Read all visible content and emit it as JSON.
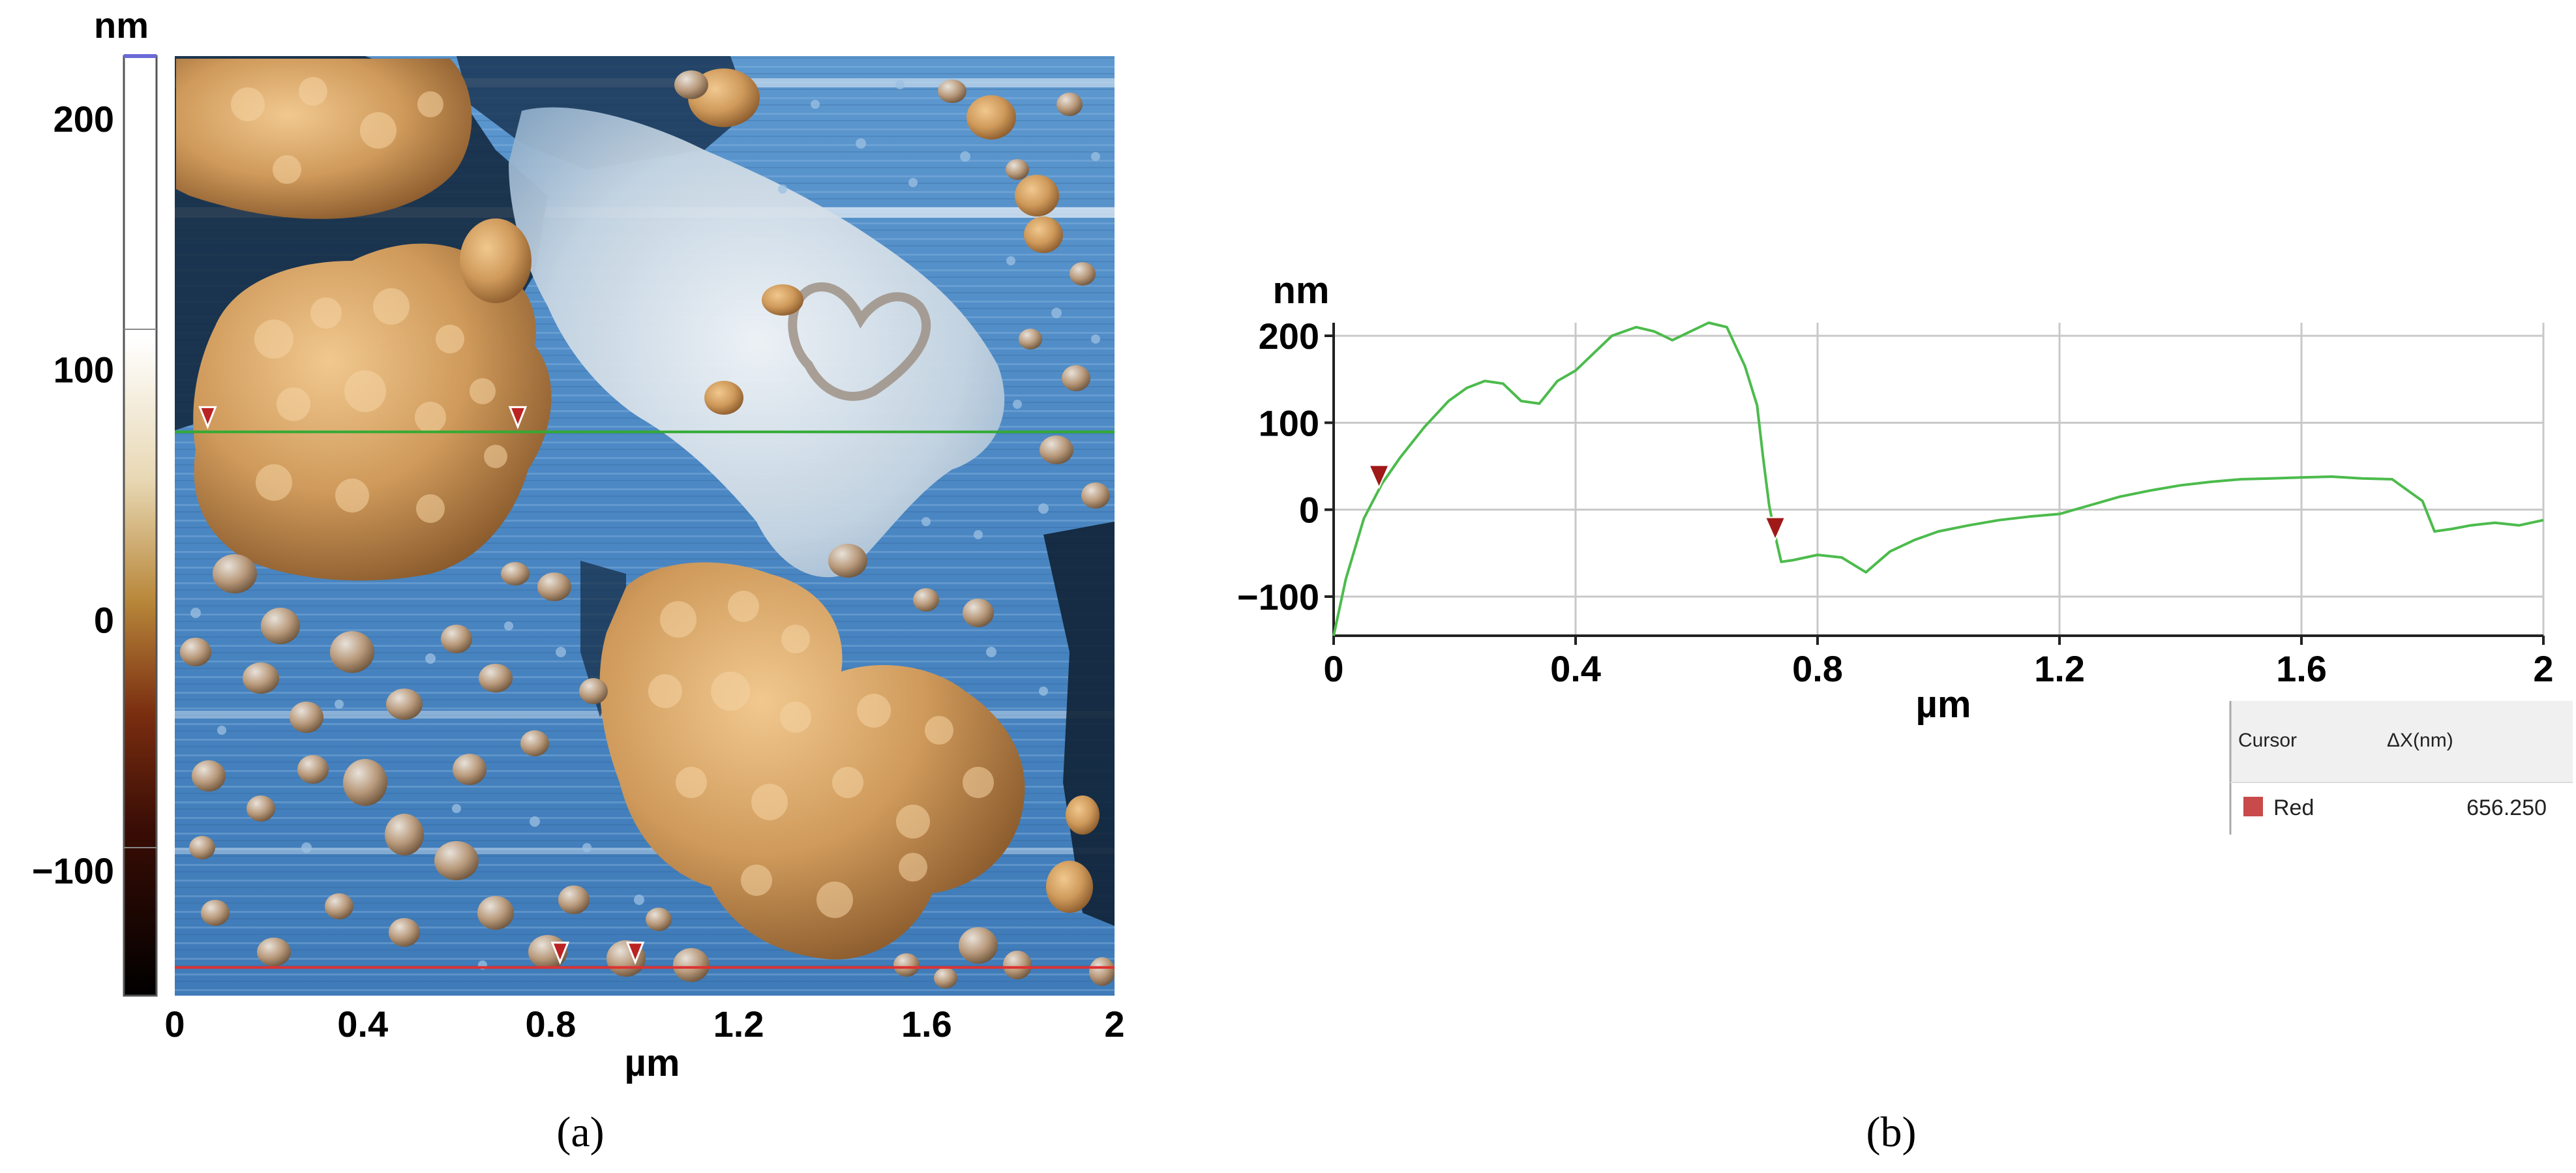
{
  "panels": {
    "a": "(a)",
    "b": "(b)"
  },
  "chart_data": [
    {
      "type": "heatmap",
      "title": "",
      "xlabel": "µm",
      "colorbar_unit": "nm",
      "x_ticks": [
        "0",
        "0.4",
        "0.8",
        "1.2",
        "1.6",
        "2"
      ],
      "xlim": [
        0,
        2
      ],
      "colorbar_ticks": [
        "200",
        "100",
        "0",
        "−100"
      ],
      "colorbar_range": [
        -150,
        225
      ],
      "colors": {
        "substrate": "#4a86c2",
        "particles": "#c9965a",
        "green_profile_line": "#33aa33",
        "red_profile_line": "#dd3333",
        "cursor_marker": "#bb2222"
      },
      "profile_lines": [
        {
          "color": "green",
          "y_um": 1.2
        },
        {
          "color": "red",
          "y_um": 0.06
        }
      ],
      "cursor_markers": [
        {
          "line": "green",
          "x_um": 0.07
        },
        {
          "line": "green",
          "x_um": 0.73
        },
        {
          "line": "red",
          "x_um": 0.82
        },
        {
          "line": "red",
          "x_um": 0.98
        }
      ]
    },
    {
      "type": "line",
      "title": "",
      "xlabel": "µm",
      "ylabel": "nm",
      "x_ticks": [
        "0",
        "0.4",
        "0.8",
        "1.2",
        "1.6",
        "2"
      ],
      "y_ticks": [
        "200",
        "100",
        "0",
        "−100"
      ],
      "xlim": [
        0,
        2
      ],
      "ylim": [
        -145,
        215
      ],
      "grid": true,
      "series": [
        {
          "color": "#4cbb4c",
          "x": [
            0,
            0.02,
            0.05,
            0.08,
            0.11,
            0.15,
            0.19,
            0.22,
            0.25,
            0.28,
            0.31,
            0.34,
            0.37,
            0.4,
            0.43,
            0.46,
            0.5,
            0.53,
            0.56,
            0.59,
            0.62,
            0.65,
            0.68,
            0.7,
            0.71,
            0.72,
            0.73,
            0.74,
            0.76,
            0.8,
            0.84,
            0.88,
            0.92,
            0.96,
            1.0,
            1.05,
            1.1,
            1.15,
            1.2,
            1.25,
            1.3,
            1.35,
            1.4,
            1.45,
            1.5,
            1.55,
            1.6,
            1.65,
            1.7,
            1.75,
            1.78,
            1.8,
            1.82,
            1.85,
            1.88,
            1.92,
            1.96,
            2.0
          ],
          "y": [
            -145,
            -80,
            -10,
            30,
            60,
            95,
            125,
            140,
            148,
            145,
            125,
            122,
            148,
            160,
            180,
            200,
            210,
            205,
            195,
            205,
            215,
            210,
            165,
            120,
            60,
            5,
            -30,
            -60,
            -58,
            -52,
            -55,
            -72,
            -48,
            -35,
            -25,
            -18,
            -12,
            -8,
            -5,
            5,
            15,
            22,
            28,
            32,
            35,
            36,
            37,
            38,
            36,
            35,
            20,
            10,
            -25,
            -22,
            -18,
            -15,
            -18,
            -12
          ]
        }
      ],
      "cursor_markers": [
        {
          "x": 0.075,
          "y": 30
        },
        {
          "x": 0.73,
          "y": -30
        }
      ],
      "cursor_table": {
        "header_cursor": "Cursor",
        "header_dx": "ΔX(nm)",
        "row_label": "Red",
        "row_value": "656.250",
        "row_color": "#c84a4a"
      }
    }
  ]
}
